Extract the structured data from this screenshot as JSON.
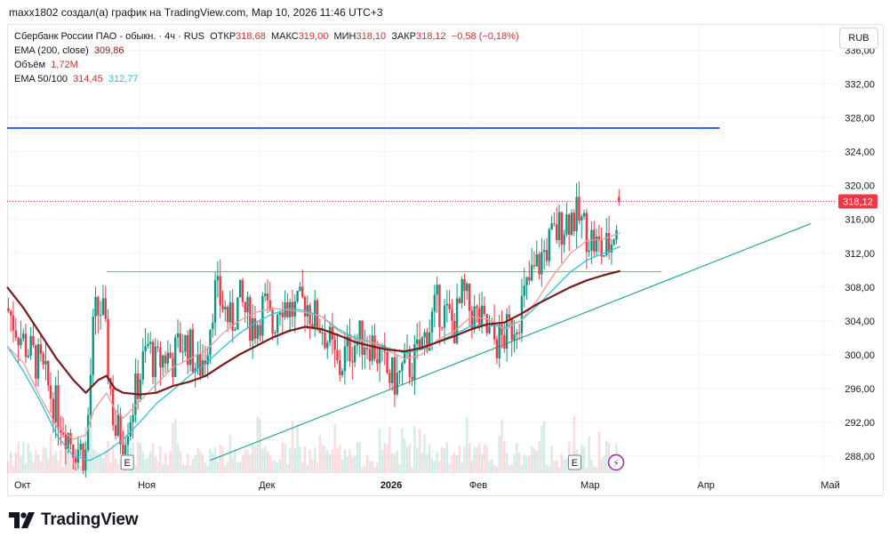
{
  "header": {
    "attribution": "maxx1802 создал(а) график на TradingView.com, Мар 10, 2026 11:46 UTC+3"
  },
  "legend": {
    "symbol_line": "Сбербанк России ПАО - обыкн. · 4ч · RUS",
    "open_label": "ОТКР",
    "open_value": "318,68",
    "high_label": "МАКС",
    "high_value": "319,00",
    "low_label": "МИН",
    "low_value": "318,10",
    "close_label": "ЗАКР",
    "close_value": "318,12",
    "change": "−0,58 (−0,18%)",
    "ema200_label": "EMA (200, close)",
    "ema200_value": "309,86",
    "volume_label": "Объём",
    "volume_value": "1,72M",
    "ema_pair_label": "EMA 50/100",
    "ema50_value": "314,45",
    "ema100_value": "312,77"
  },
  "currency": "RUB",
  "colors": {
    "up": "#089981",
    "down": "#f23645",
    "ema200": "#7b1c1c",
    "ema50": "#ef9a9a",
    "ema100": "#26c6da",
    "hline": "#2962ff",
    "resistance": "#66bb6a",
    "trend": "#26a69a"
  },
  "chart_data": {
    "type": "candlestick",
    "title": "Сбербанк России ПАО - обыкн. · 4ч · RUS",
    "ylim": [
      286.0,
      339.0
    ],
    "y_ticks": [
      "336,00",
      "332,00",
      "328,00",
      "324,00",
      "320,00",
      "316,00",
      "312,00",
      "308,00",
      "304,00",
      "300,00",
      "296,00",
      "292,00",
      "288,00"
    ],
    "y_tick_values": [
      336,
      332,
      328,
      324,
      320,
      316,
      312,
      308,
      304,
      300,
      296,
      292,
      288
    ],
    "x_range": [
      0,
      100
    ],
    "x_ticks": [
      {
        "label": "Окт",
        "x": 1
      },
      {
        "label": "Ноя",
        "x": 16
      },
      {
        "label": "Дек",
        "x": 30.5
      },
      {
        "label": "2026",
        "x": 45.5
      },
      {
        "label": "Фев",
        "x": 56
      },
      {
        "label": "Мар",
        "x": 69.5
      },
      {
        "label": "Апр",
        "x": 83.5
      },
      {
        "label": "Май",
        "x": 98.5
      }
    ],
    "last_price": 318.12,
    "last_price_label": "318,12",
    "horizontal_line": 326.8,
    "horizontal_line_x": [
      0,
      86
    ],
    "resistance_line": 309.8,
    "resistance_x": [
      12,
      79
    ],
    "trend_line": {
      "x1": 24.5,
      "y1": 287.5,
      "x2": 97,
      "y2": 315.5
    },
    "earnings_markers": [
      {
        "label": "E",
        "x": 14.5
      },
      {
        "label": "E",
        "x": 68.5
      }
    ],
    "dividend_marker": {
      "label": "⚡",
      "x": 73.5
    },
    "price_path": [
      [
        0,
        305.5
      ],
      [
        2,
        301.5
      ],
      [
        4,
        298.5
      ],
      [
        6,
        293.5
      ],
      [
        8,
        289.5
      ],
      [
        9.5,
        288.2
      ],
      [
        10.5,
        304.5
      ],
      [
        11.5,
        305.5
      ],
      [
        12,
        300.5
      ],
      [
        13,
        291
      ],
      [
        14,
        290.5
      ],
      [
        15,
        293.5
      ],
      [
        16,
        297.5
      ],
      [
        17,
        301
      ],
      [
        18,
        298.5
      ],
      [
        19,
        300
      ],
      [
        20,
        299.5
      ],
      [
        21,
        301.5
      ],
      [
        22,
        301
      ],
      [
        23,
        298
      ],
      [
        24,
        300.5
      ],
      [
        25,
        307.5
      ],
      [
        26,
        306
      ],
      [
        27,
        303.5
      ],
      [
        28,
        306.5
      ],
      [
        29,
        304.5
      ],
      [
        30,
        303.5
      ],
      [
        31,
        306
      ],
      [
        32,
        303
      ],
      [
        33,
        307
      ],
      [
        34,
        305.5
      ],
      [
        35,
        305
      ],
      [
        36,
        306.5
      ],
      [
        37,
        304.5
      ],
      [
        38,
        303.5
      ],
      [
        39,
        301
      ],
      [
        40,
        298
      ],
      [
        41,
        300.5
      ],
      [
        42,
        301.5
      ],
      [
        43,
        302
      ],
      [
        44,
        301.5
      ],
      [
        45,
        299.5
      ],
      [
        46,
        297.5
      ],
      [
        47,
        297
      ],
      [
        48,
        298.5
      ],
      [
        49,
        299
      ],
      [
        50,
        301
      ],
      [
        51,
        303.5
      ],
      [
        52,
        306
      ],
      [
        53,
        304.5
      ],
      [
        54,
        303.5
      ],
      [
        55,
        307
      ],
      [
        56,
        305
      ],
      [
        57,
        304
      ],
      [
        58,
        302.5
      ],
      [
        59,
        301.5
      ],
      [
        60,
        302
      ],
      [
        61,
        303.5
      ],
      [
        62,
        305.5
      ],
      [
        63,
        308.5
      ],
      [
        64,
        310.5
      ],
      [
        65,
        312.5
      ],
      [
        66,
        314
      ],
      [
        67,
        315.5
      ],
      [
        68,
        316.5
      ],
      [
        69,
        316
      ],
      [
        70,
        314.5
      ],
      [
        71,
        313
      ],
      [
        72,
        312
      ],
      [
        73,
        313.5
      ],
      [
        74,
        318
      ]
    ],
    "ema200_path": [
      [
        0,
        308
      ],
      [
        2,
        305.5
      ],
      [
        4,
        302.5
      ],
      [
        6,
        299.5
      ],
      [
        8,
        297
      ],
      [
        9.5,
        295.5
      ],
      [
        11,
        297
      ],
      [
        12,
        297.5
      ],
      [
        13,
        296
      ],
      [
        14,
        295.5
      ],
      [
        16,
        295.3
      ],
      [
        18,
        295.5
      ],
      [
        20,
        296.3
      ],
      [
        22,
        296.8
      ],
      [
        24,
        297.5
      ],
      [
        26,
        298.8
      ],
      [
        28,
        300
      ],
      [
        30,
        301
      ],
      [
        32,
        302
      ],
      [
        34,
        302.8
      ],
      [
        36,
        303.3
      ],
      [
        38,
        303
      ],
      [
        40,
        302.3
      ],
      [
        42,
        301.5
      ],
      [
        44,
        301
      ],
      [
        46,
        300.6
      ],
      [
        48,
        300.4
      ],
      [
        50,
        300.8
      ],
      [
        52,
        301.5
      ],
      [
        54,
        302.2
      ],
      [
        56,
        303
      ],
      [
        58,
        303.6
      ],
      [
        60,
        303.8
      ],
      [
        62,
        304.8
      ],
      [
        64,
        306
      ],
      [
        66,
        307
      ],
      [
        68,
        308
      ],
      [
        70,
        308.8
      ],
      [
        72,
        309.4
      ],
      [
        74,
        309.9
      ]
    ],
    "ema50_path": [
      [
        0,
        301
      ],
      [
        2,
        299
      ],
      [
        4,
        295
      ],
      [
        6,
        291.5
      ],
      [
        8,
        290
      ],
      [
        9.5,
        290.5
      ],
      [
        10.5,
        293.5
      ],
      [
        12,
        295.5
      ],
      [
        13,
        293.5
      ],
      [
        14,
        292.5
      ],
      [
        16,
        294.5
      ],
      [
        18,
        296.5
      ],
      [
        20,
        298.5
      ],
      [
        22,
        299.5
      ],
      [
        24,
        300.5
      ],
      [
        26,
        302.5
      ],
      [
        28,
        304
      ],
      [
        30,
        305
      ],
      [
        32,
        305.5
      ],
      [
        34,
        305.3
      ],
      [
        36,
        305
      ],
      [
        38,
        304.5
      ],
      [
        40,
        302.8
      ],
      [
        42,
        301.8
      ],
      [
        44,
        301.5
      ],
      [
        46,
        300.5
      ],
      [
        48,
        299.5
      ],
      [
        50,
        300
      ],
      [
        52,
        301.8
      ],
      [
        54,
        302.8
      ],
      [
        56,
        304.5
      ],
      [
        58,
        304.2
      ],
      [
        60,
        303
      ],
      [
        62,
        304
      ],
      [
        64,
        306.5
      ],
      [
        66,
        309.5
      ],
      [
        68,
        312
      ],
      [
        70,
        313.5
      ],
      [
        72,
        313.7
      ],
      [
        74,
        314.4
      ]
    ],
    "ema100_path": [
      [
        0,
        301
      ],
      [
        2,
        298
      ],
      [
        4,
        294.5
      ],
      [
        6,
        290.5
      ],
      [
        8,
        288
      ],
      [
        10,
        287.5
      ],
      [
        12,
        288.5
      ],
      [
        14,
        290
      ],
      [
        16,
        292
      ],
      [
        18,
        294.2
      ],
      [
        20,
        295.8
      ],
      [
        22,
        297.5
      ],
      [
        24,
        299
      ],
      [
        26,
        300.8
      ],
      [
        28,
        302.5
      ],
      [
        30,
        303.8
      ],
      [
        32,
        304.8
      ],
      [
        34,
        305.5
      ],
      [
        36,
        305.2
      ],
      [
        38,
        304.5
      ],
      [
        40,
        303
      ],
      [
        42,
        302
      ],
      [
        44,
        301.5
      ],
      [
        46,
        300.8
      ],
      [
        48,
        300.2
      ],
      [
        50,
        300.6
      ],
      [
        52,
        301.6
      ],
      [
        54,
        302.4
      ],
      [
        56,
        303.4
      ],
      [
        58,
        303.6
      ],
      [
        60,
        303.2
      ],
      [
        62,
        304
      ],
      [
        64,
        305.8
      ],
      [
        66,
        307.8
      ],
      [
        68,
        309.8
      ],
      [
        70,
        311.2
      ],
      [
        72,
        312
      ],
      [
        74,
        312.8
      ]
    ]
  }
}
